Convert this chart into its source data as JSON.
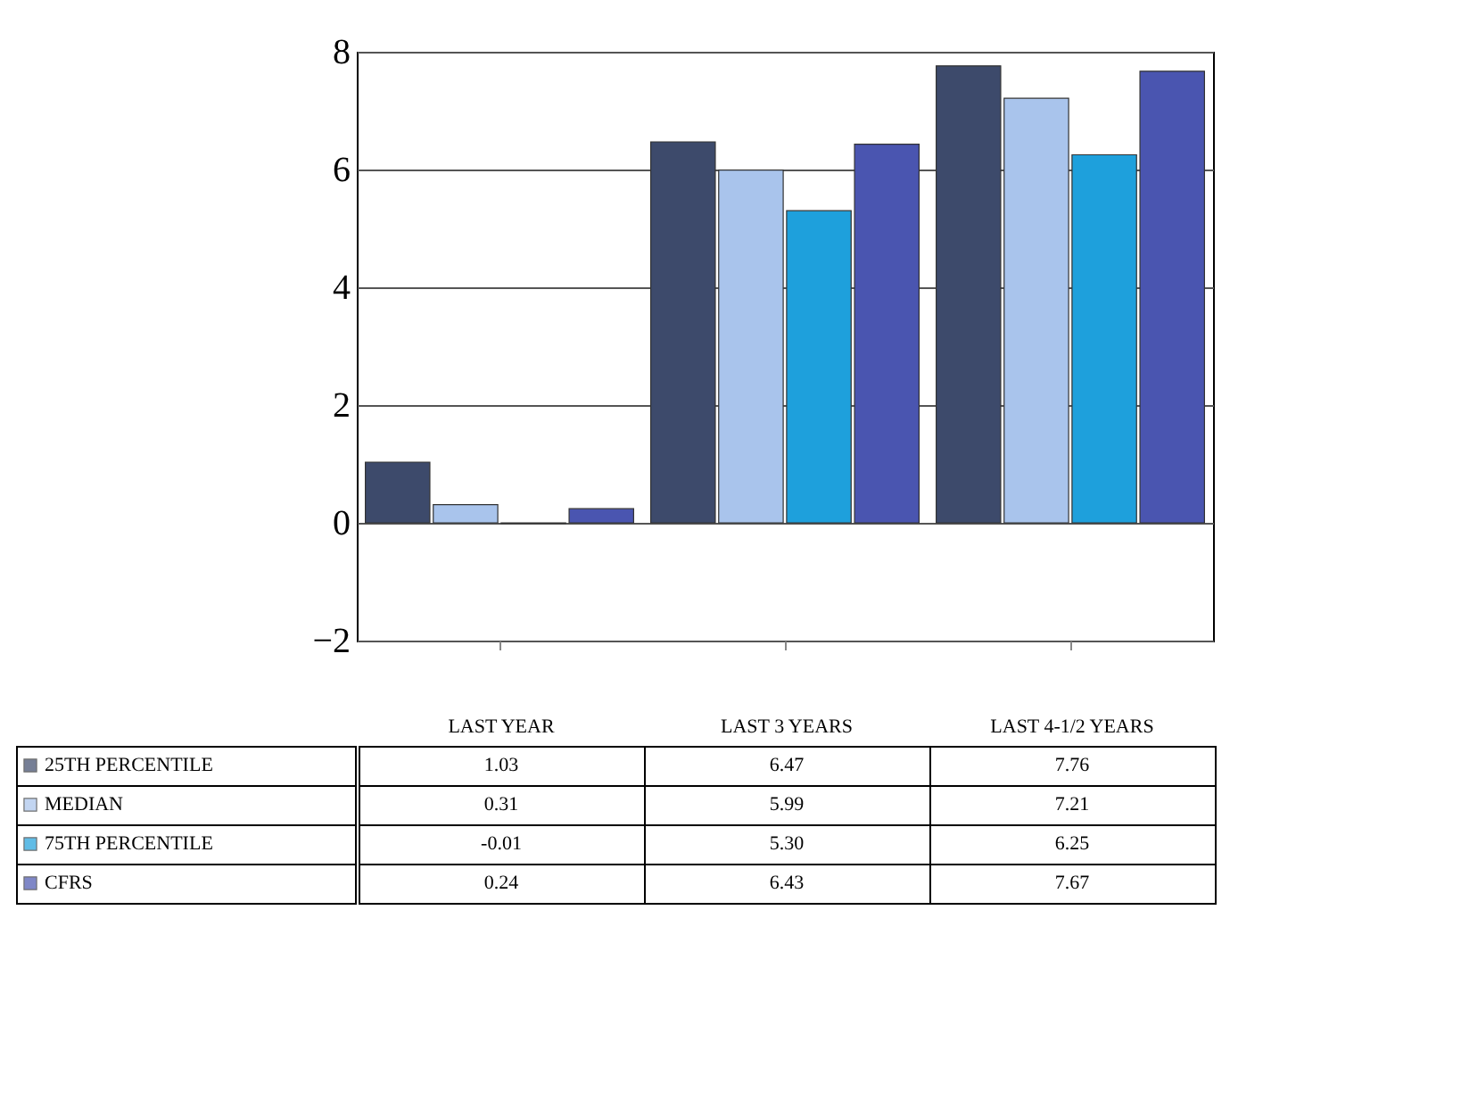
{
  "chart_data": {
    "type": "bar",
    "categories": [
      "LAST YEAR",
      "LAST 3 YEARS",
      "LAST 4-1/2 YEARS"
    ],
    "series": [
      {
        "name": "25TH PERCENTILE",
        "color": "#3d4a6b",
        "values": [
          1.03,
          6.47,
          7.76
        ],
        "value_labels": [
          "1.03",
          "6.47",
          "7.76"
        ]
      },
      {
        "name": "MEDIAN",
        "color": "#a9c4ec",
        "values": [
          0.31,
          5.99,
          7.21
        ],
        "value_labels": [
          "0.31",
          "5.99",
          "7.21"
        ]
      },
      {
        "name": "75TH PERCENTILE",
        "color": "#1ea0dc",
        "values": [
          -0.01,
          5.3,
          6.25
        ],
        "value_labels": [
          "-0.01",
          "5.30",
          "6.25"
        ]
      },
      {
        "name": "CFRS",
        "color": "#4a55b0",
        "values": [
          0.24,
          6.43,
          7.67
        ],
        "value_labels": [
          "0.24",
          "6.43",
          "7.67"
        ]
      }
    ],
    "legend": "bottom left",
    "ylim": [
      -2,
      8
    ],
    "yticks": [
      -2,
      0,
      2,
      4,
      6,
      8
    ],
    "grid": "y"
  }
}
